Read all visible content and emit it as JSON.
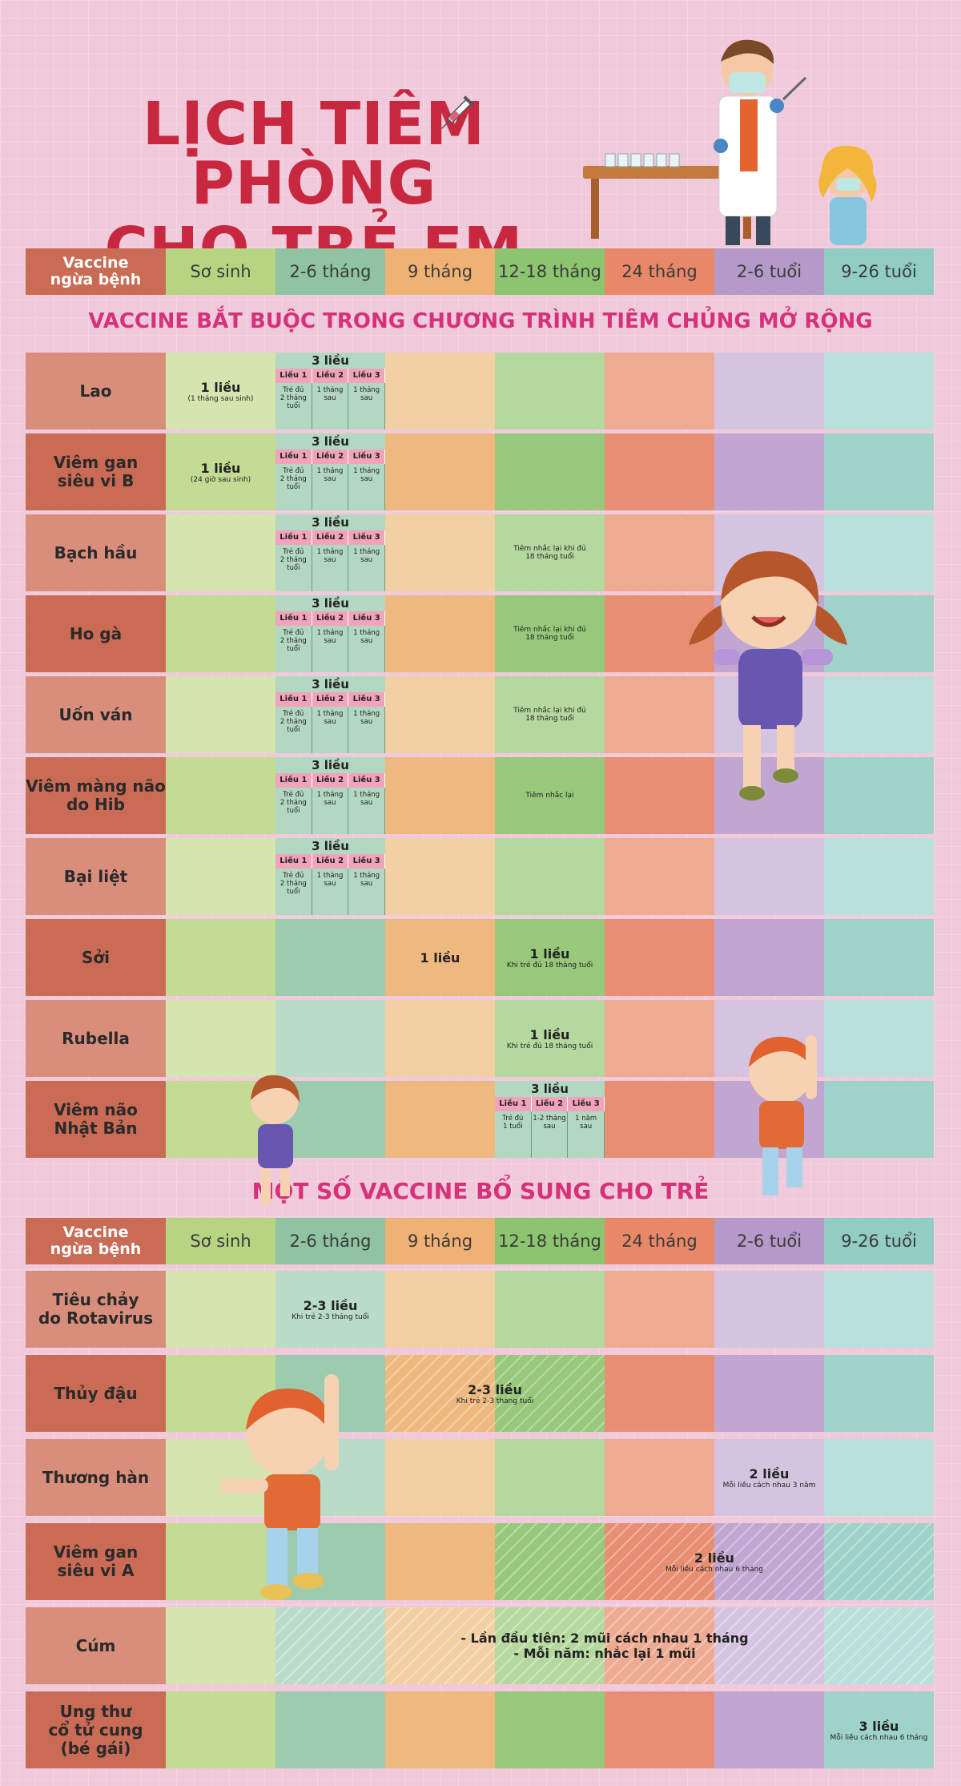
{
  "title": {
    "line1": "LỊCH TIÊM PHÒNG",
    "line2": "CHO TRẺ EM"
  },
  "header": {
    "vaccine_label": "Vaccine\nngừa bệnh",
    "columns": [
      "Sơ sinh",
      "2-6 tháng",
      "9 tháng",
      "12-18 tháng",
      "24 tháng",
      "2-6 tuổi",
      "9-26 tuổi"
    ]
  },
  "colors": {
    "columns_header": [
      "#b7d482",
      "#8fc3a2",
      "#f0b274",
      "#8cc470",
      "#e88868",
      "#b59ac9",
      "#91cdc3"
    ],
    "columns_light": [
      "#d6e5b0",
      "#b9dbc8",
      "#f3d0a3",
      "#b5d89f",
      "#efaa92",
      "#d5c4e0",
      "#b9e0da"
    ],
    "columns_dark": [
      "#c3db92",
      "#9ccbb0",
      "#eeb97e",
      "#97c87b",
      "#e88e72",
      "#c0a6d1",
      "#9fd2c9"
    ],
    "name_light": "#d98e7c",
    "name_dark": "#c96b55",
    "title_red": "#c8283f",
    "section_pink": "#d6317a"
  },
  "section1": "VACCINE  BẮT BUỘC TRONG CHƯƠNG TRÌNH TIÊM CHỦNG MỞ RỘNG",
  "section2": "MỘT SỐ VACCINE BỔ SUNG CHO TRẺ",
  "dose_block": {
    "title": "3 liều",
    "labels": [
      "Liều 1",
      "Liều 2",
      "Liều 3"
    ],
    "subs": [
      "Trẻ đủ\n2 tháng\ntuổi",
      "1 tháng\nsau",
      "1 tháng\nsau"
    ]
  },
  "dose_block_jp": {
    "title": "3 liều",
    "labels": [
      "Liều 1",
      "Liều 2",
      "Liều 3"
    ],
    "subs": [
      "Trẻ đủ\n1 tuổi",
      "1-2 tháng\nsau",
      "1 năm\nsau"
    ]
  },
  "mandatory": [
    {
      "name": "Lao",
      "newborn": {
        "main": "1 liều",
        "note": "(1 tháng sau sinh)"
      },
      "doses": true
    },
    {
      "name": "Viêm gan\nsiêu vi B",
      "newborn": {
        "main": "1 liều",
        "note": "(24 giờ sau sinh)"
      },
      "doses": true
    },
    {
      "name": "Bạch hầu",
      "doses": true,
      "m12": "Tiêm nhắc lại khi đủ\n18 tháng tuổi"
    },
    {
      "name": "Ho gà",
      "doses": true,
      "m12": "Tiêm nhắc lại khi đủ\n18 tháng tuổi"
    },
    {
      "name": "Uốn ván",
      "doses": true,
      "m12": "Tiêm nhắc lại khi đủ\n18 tháng tuổi"
    },
    {
      "name": "Viêm màng não\ndo Hib",
      "doses": true,
      "m12": "Tiêm nhắc lại"
    },
    {
      "name": "Bại liệt",
      "doses": true
    },
    {
      "name": "Sởi",
      "m9": "1 liều",
      "m12main": "1 liều",
      "m12note": "Khi trẻ đủ 18 tháng tuổi"
    },
    {
      "name": "Rubella",
      "m12main": "1 liều",
      "m12note": "Khi trẻ đủ 18 tháng tuổi"
    },
    {
      "name": "Viêm não\nNhật Bản",
      "jp": true
    }
  ],
  "supplementary": [
    {
      "name": "Tiêu chảy\ndo Rotavirus",
      "main": "2-3 liều",
      "note": "Khi trẻ 2-3 tháng tuổi"
    },
    {
      "name": "Thủy đậu",
      "main": "2-3 liều",
      "note": "Khi trẻ 2-3 tháng tuổi"
    },
    {
      "name": "Thương hàn",
      "main": "2 liều",
      "note": "Mỗi liều cách nhau 3 năm"
    },
    {
      "name": "Viêm gan\nsiêu vi A",
      "main": "2 liều",
      "note": "Mỗi liều cách nhau 6 tháng"
    },
    {
      "name": "Cúm",
      "line1": "- Lần đầu tiên: 2 mũi cách nhau 1 tháng",
      "line2": "- Mỗi năm: nhắc lại 1 mũi"
    },
    {
      "name": "Ung thư\ncổ tử cung\n(bé gái)",
      "main": "3 liều",
      "note": "Mỗi liều cách nhau 6 tháng"
    }
  ]
}
